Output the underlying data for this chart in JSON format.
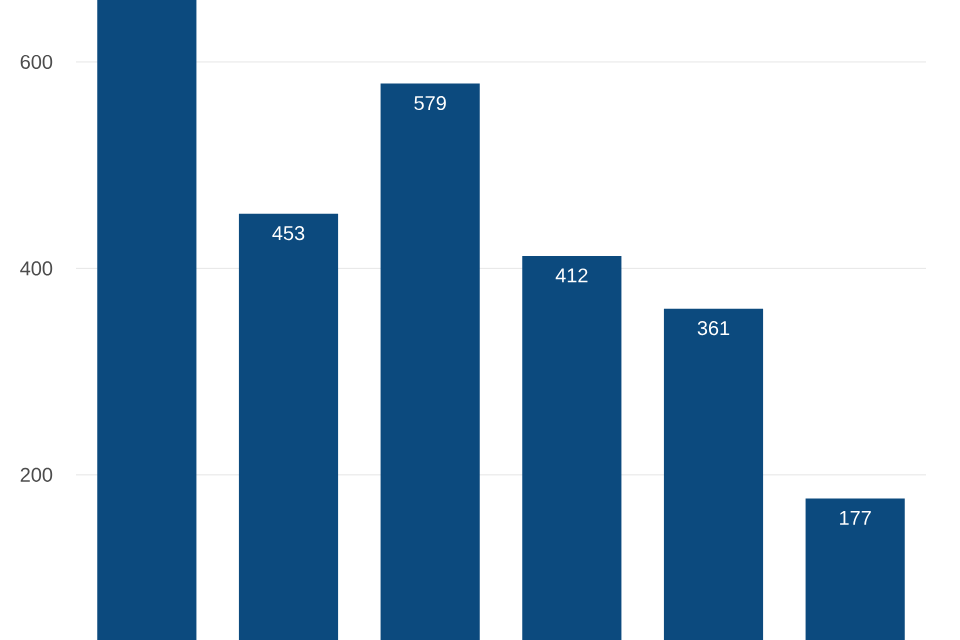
{
  "chart_data": {
    "type": "bar",
    "categories": [
      null,
      null,
      null,
      null,
      null,
      null
    ],
    "values": [
      660,
      453,
      579,
      412,
      361,
      177
    ],
    "value_labels": [
      null,
      "453",
      "579",
      "412",
      "361",
      "177"
    ],
    "color": "#0c4a7e",
    "ylim": [
      40,
      660
    ],
    "yticks": [
      200,
      400,
      600
    ],
    "grid": "y"
  }
}
